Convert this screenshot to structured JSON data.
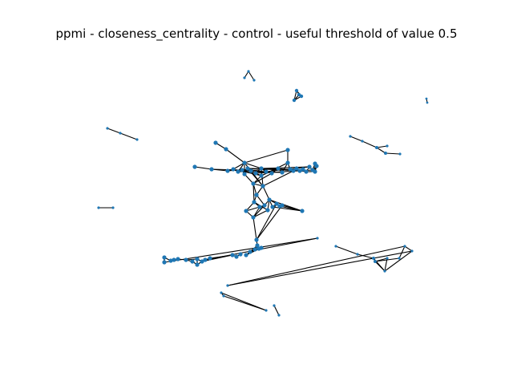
{
  "title": "ppmi - closeness_centrality - control - useful threshold of value 0.5",
  "graph": {
    "node_color": "#1f77b4",
    "edge_color": "#000000",
    "node_count": 104,
    "edge_count": 188
  }
}
